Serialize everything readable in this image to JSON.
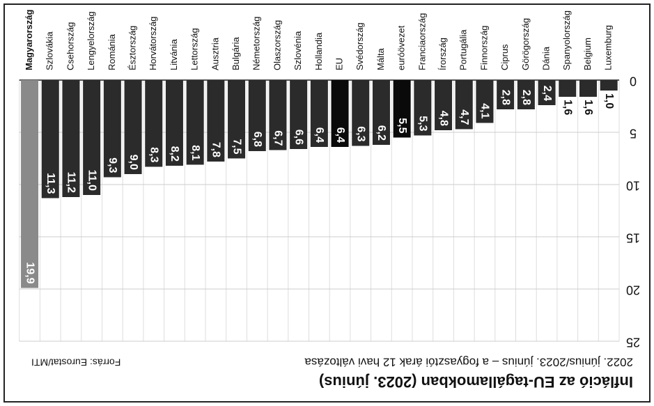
{
  "chart_data": {
    "type": "bar",
    "title": "Infláció az EU-tagállamokban (2023. június)",
    "subtitle": "2022. június/2023. június – a fogyasztói árak 12 havi változása",
    "source": "Forrás: Eurostat/MTI",
    "categories": [
      "Luxemburg",
      "Belgium",
      "Spanyolország",
      "Dánia",
      "Görögország",
      "Ciprus",
      "Finnország",
      "Portugália",
      "Írország",
      "Franciaország",
      "euróövezet",
      "Málta",
      "Svédország",
      "EU",
      "Hollandia",
      "Szlovénia",
      "Olaszország",
      "Németország",
      "Bulgária",
      "Ausztria",
      "Lettország",
      "Litvánia",
      "Horvátország",
      "Észtország",
      "Románia",
      "Lengyelország",
      "Csehország",
      "Szlovákia",
      "Magyarország"
    ],
    "values": [
      1.0,
      1.6,
      1.6,
      2.4,
      2.8,
      2.8,
      4.1,
      4.7,
      4.8,
      5.3,
      5.5,
      6.2,
      6.3,
      6.4,
      6.4,
      6.6,
      6.7,
      6.8,
      7.5,
      7.8,
      8.1,
      8.2,
      8.3,
      9.0,
      9.3,
      11.0,
      11.2,
      11.3,
      19.9
    ],
    "value_labels": [
      "1,0",
      "1,6",
      "1,6",
      "2,4",
      "2,8",
      "2,8",
      "4,1",
      "4,7",
      "4,8",
      "5,3",
      "5,5",
      "6,2",
      "6,3",
      "6,4",
      "6,4",
      "6,6",
      "6,7",
      "6,8",
      "7,5",
      "7,8",
      "8,1",
      "8,2",
      "8,3",
      "9,0",
      "9,3",
      "11,0",
      "11,2",
      "11,3",
      "19,9"
    ],
    "colors": [
      "#2b2b2b",
      "#2b2b2b",
      "#2b2b2b",
      "#2b2b2b",
      "#2b2b2b",
      "#2b2b2b",
      "#2b2b2b",
      "#2b2b2b",
      "#2b2b2b",
      "#2b2b2b",
      "#0a0a0a",
      "#2b2b2b",
      "#2b2b2b",
      "#0a0a0a",
      "#2b2b2b",
      "#2b2b2b",
      "#2b2b2b",
      "#2b2b2b",
      "#2b2b2b",
      "#2b2b2b",
      "#2b2b2b",
      "#2b2b2b",
      "#2b2b2b",
      "#2b2b2b",
      "#2b2b2b",
      "#2b2b2b",
      "#2b2b2b",
      "#2b2b2b",
      "#8a8a8a"
    ],
    "ylim": [
      0,
      25
    ],
    "yticks": [
      0,
      5,
      10,
      15,
      20,
      25
    ],
    "grid": true
  }
}
